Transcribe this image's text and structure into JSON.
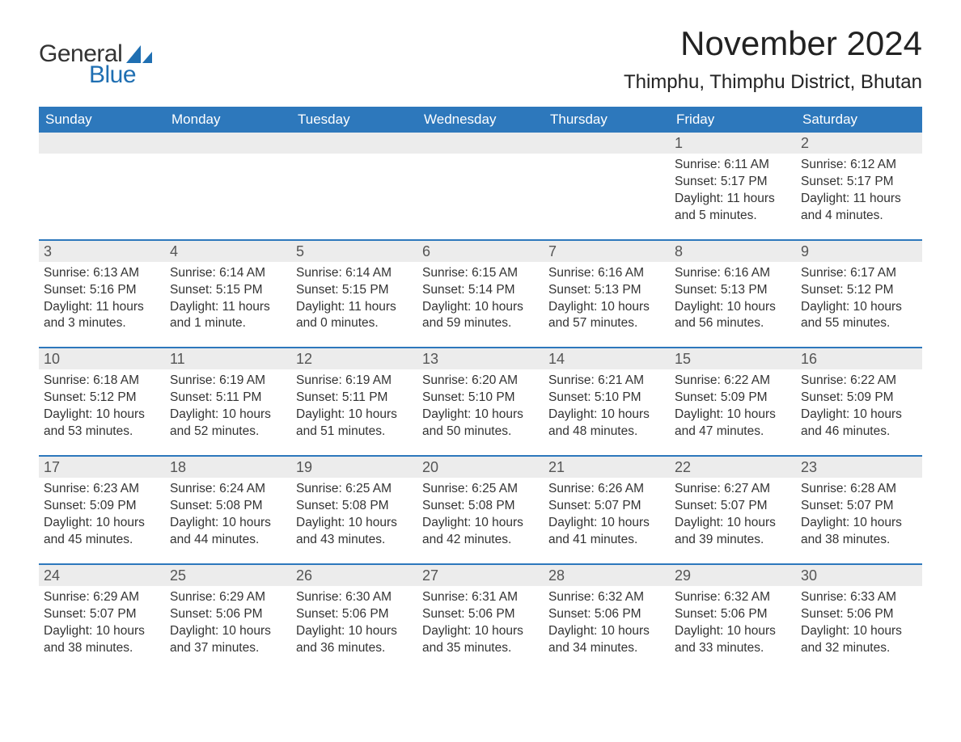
{
  "logo": {
    "text1": "General",
    "text2": "Blue",
    "sail_color": "#1f6fb2",
    "text1_color": "#333333"
  },
  "title": "November 2024",
  "location": "Thimphu, Thimphu District, Bhutan",
  "colors": {
    "header_bg": "#2d78bc",
    "header_text": "#ffffff",
    "daynum_bg": "#ececec",
    "daynum_text": "#555555",
    "body_text": "#333333",
    "week_border": "#2d78bc",
    "background": "#ffffff"
  },
  "day_headers": [
    "Sunday",
    "Monday",
    "Tuesday",
    "Wednesday",
    "Thursday",
    "Friday",
    "Saturday"
  ],
  "weeks": [
    [
      {
        "day": "",
        "sunrise": "",
        "sunset": "",
        "daylight": ""
      },
      {
        "day": "",
        "sunrise": "",
        "sunset": "",
        "daylight": ""
      },
      {
        "day": "",
        "sunrise": "",
        "sunset": "",
        "daylight": ""
      },
      {
        "day": "",
        "sunrise": "",
        "sunset": "",
        "daylight": ""
      },
      {
        "day": "",
        "sunrise": "",
        "sunset": "",
        "daylight": ""
      },
      {
        "day": "1",
        "sunrise": "Sunrise: 6:11 AM",
        "sunset": "Sunset: 5:17 PM",
        "daylight": "Daylight: 11 hours and 5 minutes."
      },
      {
        "day": "2",
        "sunrise": "Sunrise: 6:12 AM",
        "sunset": "Sunset: 5:17 PM",
        "daylight": "Daylight: 11 hours and 4 minutes."
      }
    ],
    [
      {
        "day": "3",
        "sunrise": "Sunrise: 6:13 AM",
        "sunset": "Sunset: 5:16 PM",
        "daylight": "Daylight: 11 hours and 3 minutes."
      },
      {
        "day": "4",
        "sunrise": "Sunrise: 6:14 AM",
        "sunset": "Sunset: 5:15 PM",
        "daylight": "Daylight: 11 hours and 1 minute."
      },
      {
        "day": "5",
        "sunrise": "Sunrise: 6:14 AM",
        "sunset": "Sunset: 5:15 PM",
        "daylight": "Daylight: 11 hours and 0 minutes."
      },
      {
        "day": "6",
        "sunrise": "Sunrise: 6:15 AM",
        "sunset": "Sunset: 5:14 PM",
        "daylight": "Daylight: 10 hours and 59 minutes."
      },
      {
        "day": "7",
        "sunrise": "Sunrise: 6:16 AM",
        "sunset": "Sunset: 5:13 PM",
        "daylight": "Daylight: 10 hours and 57 minutes."
      },
      {
        "day": "8",
        "sunrise": "Sunrise: 6:16 AM",
        "sunset": "Sunset: 5:13 PM",
        "daylight": "Daylight: 10 hours and 56 minutes."
      },
      {
        "day": "9",
        "sunrise": "Sunrise: 6:17 AM",
        "sunset": "Sunset: 5:12 PM",
        "daylight": "Daylight: 10 hours and 55 minutes."
      }
    ],
    [
      {
        "day": "10",
        "sunrise": "Sunrise: 6:18 AM",
        "sunset": "Sunset: 5:12 PM",
        "daylight": "Daylight: 10 hours and 53 minutes."
      },
      {
        "day": "11",
        "sunrise": "Sunrise: 6:19 AM",
        "sunset": "Sunset: 5:11 PM",
        "daylight": "Daylight: 10 hours and 52 minutes."
      },
      {
        "day": "12",
        "sunrise": "Sunrise: 6:19 AM",
        "sunset": "Sunset: 5:11 PM",
        "daylight": "Daylight: 10 hours and 51 minutes."
      },
      {
        "day": "13",
        "sunrise": "Sunrise: 6:20 AM",
        "sunset": "Sunset: 5:10 PM",
        "daylight": "Daylight: 10 hours and 50 minutes."
      },
      {
        "day": "14",
        "sunrise": "Sunrise: 6:21 AM",
        "sunset": "Sunset: 5:10 PM",
        "daylight": "Daylight: 10 hours and 48 minutes."
      },
      {
        "day": "15",
        "sunrise": "Sunrise: 6:22 AM",
        "sunset": "Sunset: 5:09 PM",
        "daylight": "Daylight: 10 hours and 47 minutes."
      },
      {
        "day": "16",
        "sunrise": "Sunrise: 6:22 AM",
        "sunset": "Sunset: 5:09 PM",
        "daylight": "Daylight: 10 hours and 46 minutes."
      }
    ],
    [
      {
        "day": "17",
        "sunrise": "Sunrise: 6:23 AM",
        "sunset": "Sunset: 5:09 PM",
        "daylight": "Daylight: 10 hours and 45 minutes."
      },
      {
        "day": "18",
        "sunrise": "Sunrise: 6:24 AM",
        "sunset": "Sunset: 5:08 PM",
        "daylight": "Daylight: 10 hours and 44 minutes."
      },
      {
        "day": "19",
        "sunrise": "Sunrise: 6:25 AM",
        "sunset": "Sunset: 5:08 PM",
        "daylight": "Daylight: 10 hours and 43 minutes."
      },
      {
        "day": "20",
        "sunrise": "Sunrise: 6:25 AM",
        "sunset": "Sunset: 5:08 PM",
        "daylight": "Daylight: 10 hours and 42 minutes."
      },
      {
        "day": "21",
        "sunrise": "Sunrise: 6:26 AM",
        "sunset": "Sunset: 5:07 PM",
        "daylight": "Daylight: 10 hours and 41 minutes."
      },
      {
        "day": "22",
        "sunrise": "Sunrise: 6:27 AM",
        "sunset": "Sunset: 5:07 PM",
        "daylight": "Daylight: 10 hours and 39 minutes."
      },
      {
        "day": "23",
        "sunrise": "Sunrise: 6:28 AM",
        "sunset": "Sunset: 5:07 PM",
        "daylight": "Daylight: 10 hours and 38 minutes."
      }
    ],
    [
      {
        "day": "24",
        "sunrise": "Sunrise: 6:29 AM",
        "sunset": "Sunset: 5:07 PM",
        "daylight": "Daylight: 10 hours and 38 minutes."
      },
      {
        "day": "25",
        "sunrise": "Sunrise: 6:29 AM",
        "sunset": "Sunset: 5:06 PM",
        "daylight": "Daylight: 10 hours and 37 minutes."
      },
      {
        "day": "26",
        "sunrise": "Sunrise: 6:30 AM",
        "sunset": "Sunset: 5:06 PM",
        "daylight": "Daylight: 10 hours and 36 minutes."
      },
      {
        "day": "27",
        "sunrise": "Sunrise: 6:31 AM",
        "sunset": "Sunset: 5:06 PM",
        "daylight": "Daylight: 10 hours and 35 minutes."
      },
      {
        "day": "28",
        "sunrise": "Sunrise: 6:32 AM",
        "sunset": "Sunset: 5:06 PM",
        "daylight": "Daylight: 10 hours and 34 minutes."
      },
      {
        "day": "29",
        "sunrise": "Sunrise: 6:32 AM",
        "sunset": "Sunset: 5:06 PM",
        "daylight": "Daylight: 10 hours and 33 minutes."
      },
      {
        "day": "30",
        "sunrise": "Sunrise: 6:33 AM",
        "sunset": "Sunset: 5:06 PM",
        "daylight": "Daylight: 10 hours and 32 minutes."
      }
    ]
  ]
}
